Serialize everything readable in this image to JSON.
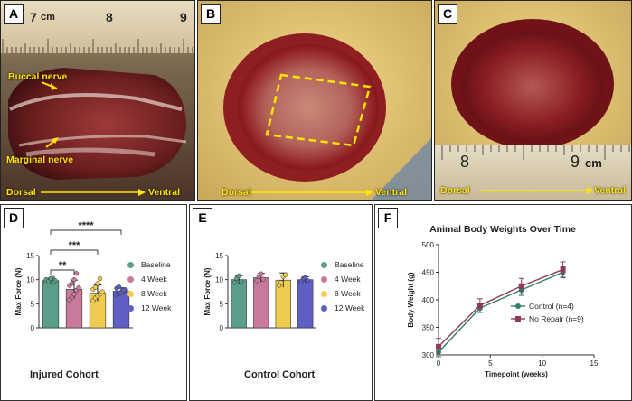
{
  "panels": {
    "A": {
      "label": "A",
      "ruler_unit": "cm",
      "ruler_numbers": [
        "7",
        "8",
        "9"
      ],
      "labels": {
        "buccal": "Buccal nerve",
        "marginal": "Marginal nerve",
        "dorsal": "Dorsal",
        "ventral": "Ventral"
      }
    },
    "B": {
      "label": "B",
      "labels": {
        "dorsal": "Dorsal",
        "ventral": "Ventral"
      }
    },
    "C": {
      "label": "C",
      "ruler_unit": "cm",
      "ruler_numbers": [
        "8",
        "9"
      ],
      "labels": {
        "dorsal": "Dorsal",
        "ventral": "Ventral"
      }
    },
    "D": {
      "label": "D",
      "title": "Injured Cohort"
    },
    "E": {
      "label": "E",
      "title": "Control Cohort"
    },
    "F": {
      "label": "F"
    }
  },
  "colors": {
    "baseline": "#5b9e8c",
    "week4": "#c9799b",
    "week8": "#f0cc4e",
    "week12": "#5f5fc4",
    "control": "#2e7d6a",
    "norepair": "#8e3a5c",
    "annotation_yellow": "#ffe600"
  },
  "chart_data": [
    {
      "type": "bar",
      "panel": "D",
      "title": "Injured Cohort",
      "ylabel": "Max Force (N)",
      "ylim": [
        0,
        15
      ],
      "yticks": [
        "0",
        "5",
        "10",
        "15"
      ],
      "categories": [
        "Baseline",
        "4 Week",
        "8 Week",
        "12 Week"
      ],
      "values": [
        9.8,
        8.0,
        7.2,
        7.6
      ],
      "errors": [
        0.5,
        1.9,
        1.7,
        0.7
      ],
      "points": [
        [
          9.5,
          9.7,
          10.1,
          10.3,
          9.8,
          10.0,
          9.6,
          10.2,
          9.4
        ],
        [
          5.8,
          6.3,
          7.0,
          7.8,
          8.3,
          8.8,
          9.2,
          10.0,
          11.3
        ],
        [
          5.6,
          6.2,
          6.6,
          7.0,
          7.5,
          8.0,
          8.4,
          9.2,
          10.2
        ],
        [
          6.8,
          7.1,
          7.4,
          7.6,
          7.9,
          8.2,
          8.5,
          7.3,
          7.8
        ]
      ],
      "legend": [
        "Baseline",
        "4 Week",
        "8 Week",
        "12 Week"
      ],
      "significance": [
        {
          "from": 0,
          "to": 1,
          "label": "**"
        },
        {
          "from": 0,
          "to": 2,
          "label": "***"
        },
        {
          "from": 0,
          "to": 3,
          "label": "****"
        }
      ]
    },
    {
      "type": "bar",
      "panel": "E",
      "title": "Control Cohort",
      "ylabel": "Max Force (N)",
      "ylim": [
        0,
        15
      ],
      "yticks": [
        "0",
        "5",
        "10",
        "15"
      ],
      "categories": [
        "Baseline",
        "4 Week",
        "8 Week",
        "12 Week"
      ],
      "values": [
        10.0,
        10.4,
        9.9,
        10.0
      ],
      "errors": [
        0.8,
        0.9,
        1.5,
        0.6
      ],
      "points": [
        [
          9.4,
          10.3,
          10.8,
          9.6
        ],
        [
          9.8,
          10.6,
          11.2,
          10.1
        ],
        [
          8.8,
          9.4,
          10.6,
          11.0
        ],
        [
          9.6,
          10.2,
          10.5,
          9.8
        ]
      ],
      "legend": [
        "Baseline",
        "4 Week",
        "8 Week",
        "12 Week"
      ]
    },
    {
      "type": "line",
      "panel": "F",
      "title": "Animal Body Weights Over Time",
      "xlabel": "Timepoint (weeks)",
      "ylabel": "Body Weight (g)",
      "xlim": [
        0,
        15
      ],
      "ylim": [
        300,
        500
      ],
      "xticks": [
        "0",
        "5",
        "10",
        "15"
      ],
      "yticks": [
        "300",
        "350",
        "400",
        "450",
        "500"
      ],
      "x": [
        0,
        4,
        8,
        12
      ],
      "series": [
        {
          "name": "Control (n=4)",
          "values": [
            305,
            385,
            418,
            450
          ],
          "errors": [
            8,
            8,
            10,
            10
          ],
          "marker": "circle"
        },
        {
          "name": "No Repair (n=9)",
          "values": [
            315,
            390,
            425,
            455
          ],
          "errors": [
            15,
            12,
            14,
            14
          ],
          "marker": "square"
        }
      ],
      "legend_position": "bottom-right"
    }
  ]
}
